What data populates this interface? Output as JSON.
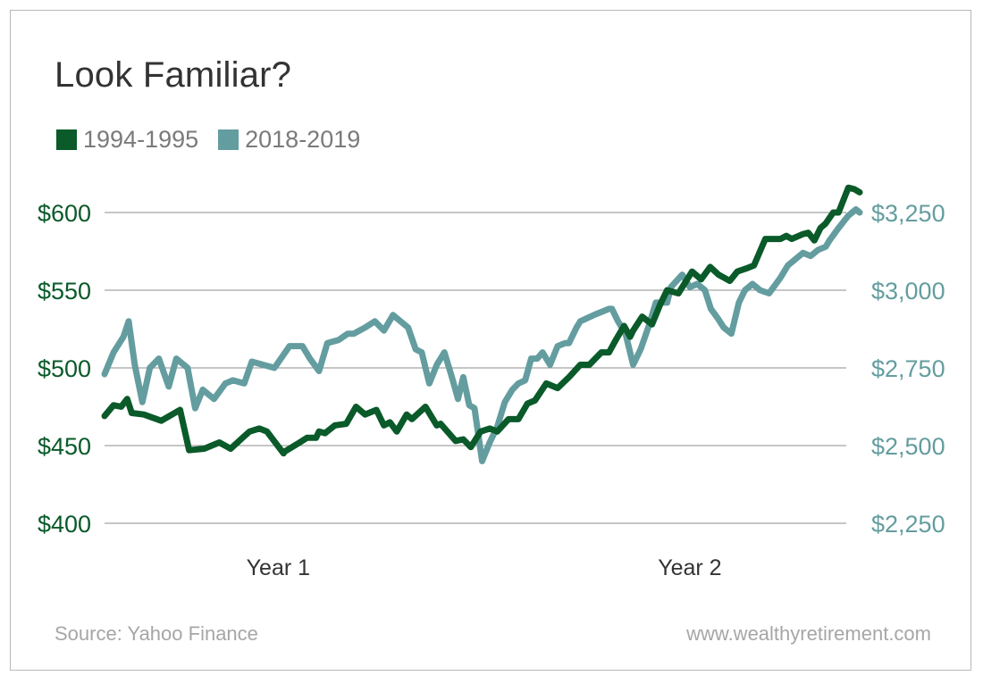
{
  "colors": {
    "series_1994": "#0a5a2a",
    "series_2018": "#649d9f",
    "grid": "#8c8c8c",
    "title": "#333333",
    "muted": "#a6a6a6",
    "legend_text": "#7a7a7a"
  },
  "header": {
    "title": "Look Familiar?"
  },
  "footer": {
    "source": "Source: Yahoo Finance",
    "site": "www.wealthyretirement.com"
  },
  "chart_data": {
    "type": "line",
    "title": "Look Familiar?",
    "legend_position": "top-left",
    "grid": "horizontal",
    "x_categories": [
      "Year 1",
      "Year 2"
    ],
    "x_label_positions": [
      0.23,
      0.775
    ],
    "y_left": {
      "min": 400,
      "max": 600,
      "ticks": [
        400,
        450,
        500,
        550,
        600
      ],
      "tick_labels": [
        "$400",
        "$450",
        "$500",
        "$550",
        "$600"
      ]
    },
    "y_right": {
      "min": 2250,
      "max": 3250,
      "ticks": [
        2250,
        2500,
        2750,
        3000,
        3250
      ],
      "tick_labels": [
        "$2,250",
        "$2,500",
        "$2,750",
        "$3,000",
        "$3,250"
      ]
    },
    "series": [
      {
        "name": "1994-1995",
        "axis": "left",
        "x": [
          0.0,
          0.012,
          0.022,
          0.03,
          0.036,
          0.052,
          0.075,
          0.1,
          0.112,
          0.132,
          0.152,
          0.167,
          0.185,
          0.192,
          0.205,
          0.215,
          0.237,
          0.238,
          0.255,
          0.268,
          0.28,
          0.284,
          0.292,
          0.305,
          0.32,
          0.333,
          0.345,
          0.36,
          0.37,
          0.378,
          0.387,
          0.4,
          0.407,
          0.425,
          0.44,
          0.445,
          0.465,
          0.475,
          0.485,
          0.498,
          0.51,
          0.52,
          0.535,
          0.548,
          0.56,
          0.57,
          0.585,
          0.6,
          0.615,
          0.63,
          0.642,
          0.658,
          0.668,
          0.677,
          0.688,
          0.696,
          0.7,
          0.712,
          0.725,
          0.736,
          0.745,
          0.76,
          0.778,
          0.79,
          0.802,
          0.813,
          0.828,
          0.838,
          0.85,
          0.86,
          0.875,
          0.895,
          0.903,
          0.91,
          0.924,
          0.932,
          0.94
        ],
        "values": [
          469,
          476,
          475,
          480,
          471,
          470,
          466,
          473,
          447,
          448,
          452,
          448,
          456,
          459,
          461,
          459,
          445,
          446,
          451,
          455,
          455,
          459,
          458,
          463,
          464,
          475,
          470,
          473,
          463,
          465,
          459,
          470,
          467,
          475,
          463,
          464,
          453,
          454,
          449,
          459,
          461,
          459,
          467,
          467,
          477,
          479,
          490,
          487,
          494,
          502,
          502,
          510,
          510,
          518,
          527,
          520,
          524,
          533,
          528,
          541,
          550,
          548,
          562,
          557,
          565,
          560,
          556,
          562,
          564,
          566,
          583,
          583,
          585,
          583,
          586,
          587,
          582
        ],
        "x_tail": [
          0.94,
          0.948,
          0.955,
          0.965,
          0.972,
          0.985,
          0.993,
          1.0
        ],
        "values_tail": [
          582,
          590,
          593,
          600,
          600,
          616,
          615,
          613
        ]
      },
      {
        "name": "2018-2019",
        "axis": "right",
        "x": [
          0.0,
          0.012,
          0.025,
          0.032,
          0.04,
          0.05,
          0.06,
          0.072,
          0.085,
          0.095,
          0.11,
          0.12,
          0.13,
          0.145,
          0.16,
          0.17,
          0.185,
          0.195,
          0.21,
          0.225,
          0.245,
          0.262,
          0.272,
          0.284,
          0.295,
          0.31,
          0.322,
          0.33,
          0.345,
          0.358,
          0.37,
          0.382,
          0.392,
          0.402,
          0.412,
          0.42,
          0.43,
          0.44,
          0.45,
          0.455,
          0.46,
          0.468,
          0.475,
          0.483,
          0.49,
          0.5,
          0.51,
          0.52,
          0.53,
          0.54,
          0.548,
          0.557,
          0.565,
          0.573,
          0.58,
          0.59,
          0.6,
          0.61,
          0.615,
          0.625,
          0.63,
          0.648,
          0.658,
          0.668,
          0.672,
          0.68,
          0.69,
          0.7,
          0.71,
          0.72,
          0.73,
          0.745,
          0.75,
          0.765,
          0.775,
          0.785,
          0.795,
          0.803,
          0.812,
          0.82,
          0.83,
          0.84,
          0.848,
          0.858,
          0.868,
          0.88,
          0.895,
          0.905,
          0.915,
          0.925,
          0.935,
          0.945,
          0.955,
          0.96,
          0.972,
          0.985,
          0.995,
          1.0
        ],
        "values": [
          2730,
          2800,
          2850,
          2900,
          2760,
          2640,
          2750,
          2780,
          2690,
          2780,
          2750,
          2620,
          2680,
          2650,
          2700,
          2710,
          2700,
          2770,
          2760,
          2750,
          2820,
          2820,
          2780,
          2740,
          2830,
          2840,
          2860,
          2860,
          2880,
          2900,
          2870,
          2920,
          2900,
          2880,
          2810,
          2800,
          2700,
          2760,
          2800,
          2760,
          2720,
          2650,
          2720,
          2630,
          2620,
          2450,
          2510,
          2560,
          2640,
          2680,
          2700,
          2710,
          2780,
          2780,
          2800,
          2760,
          2820,
          2830,
          2830,
          2880,
          2900,
          2920,
          2930,
          2940,
          2940,
          2900,
          2860,
          2760,
          2810,
          2880,
          2960,
          2960,
          3010,
          3050,
          3010,
          3020,
          3000,
          2940,
          2910,
          2880,
          2860,
          2960,
          3000,
          3020,
          3000,
          2990,
          3040,
          3080,
          3100,
          3120,
          3110,
          3130,
          3140,
          3160,
          3200,
          3240,
          3260,
          3250
        ]
      }
    ]
  }
}
